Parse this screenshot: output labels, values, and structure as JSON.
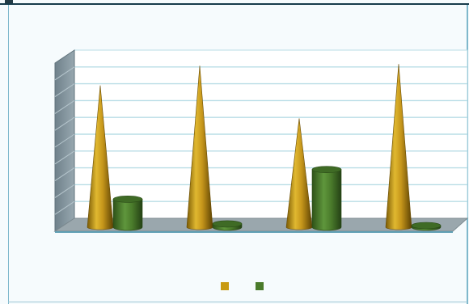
{
  "chart_data": {
    "type": "bar",
    "bar_shape": "cone-and-cylinder",
    "three_d": true,
    "title": "",
    "xlabel": "",
    "ylabel": "",
    "categories": [
      "",
      "",
      "",
      ""
    ],
    "ylim": [
      0,
      100
    ],
    "grid": true,
    "legend_position": "bottom",
    "series": [
      {
        "name": "",
        "shape": "cone",
        "color": "#c89a12",
        "values": [
          86,
          98,
          66,
          99
        ]
      },
      {
        "name": "",
        "shape": "cylinder",
        "color": "#4a7b2b",
        "values": [
          17,
          2,
          35,
          0
        ]
      }
    ],
    "colors": {
      "background": "#f6fbfd",
      "wall": "#ffffff",
      "side_wall": "#7f9098",
      "floor": "#9aa7ad",
      "gridline": "#b9dde6"
    }
  }
}
